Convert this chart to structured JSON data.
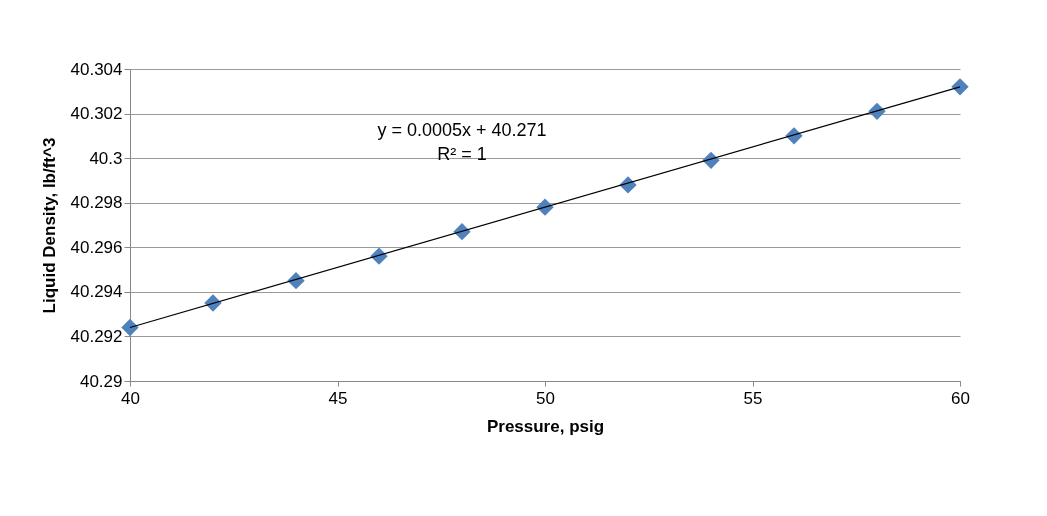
{
  "chart_data": {
    "type": "scatter",
    "xlabel": "Pressure, psig",
    "ylabel": "Liquid Density, lb/ft^3",
    "x": [
      40,
      42,
      44,
      46,
      48,
      50,
      52,
      54,
      56,
      58,
      60
    ],
    "series": [
      {
        "color": "#4f81bd",
        "values": [
          40.2924,
          40.2935,
          40.2945,
          40.2956,
          40.2967,
          40.2978,
          40.2988,
          40.2999,
          40.301,
          40.3021,
          40.3032
        ],
        "marker": "diamond"
      },
      {
        "type": "line",
        "color": "#000000",
        "x": [
          40,
          60
        ],
        "values": [
          40.2924,
          40.3032
        ],
        "marker": "none"
      }
    ],
    "xlim": [
      40,
      60
    ],
    "xticks": [
      40,
      45,
      50,
      55,
      60
    ],
    "ylim": [
      40.29,
      40.304
    ],
    "yticks": [
      40.29,
      40.292,
      40.294,
      40.296,
      40.298,
      40.3,
      40.302,
      40.304
    ],
    "grid": "y",
    "annotations": [
      "y = 0.0005x + 40.271",
      "R² = 1"
    ]
  }
}
